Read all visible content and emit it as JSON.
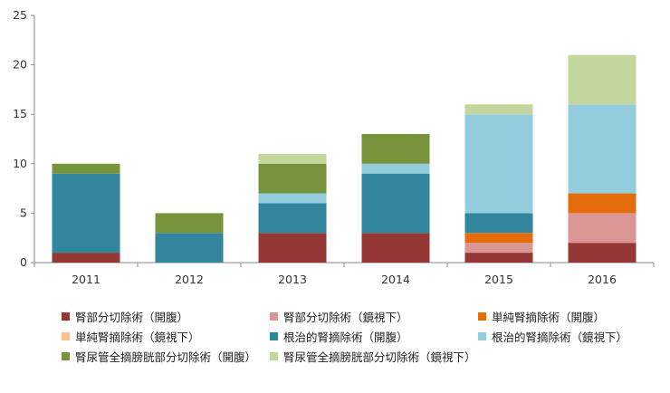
{
  "chart_data": {
    "type": "bar",
    "stacked": true,
    "categories": [
      "2011",
      "2012",
      "2013",
      "2014",
      "2015",
      "2016"
    ],
    "ylim": [
      0,
      25
    ],
    "yticks": [
      "0",
      "5",
      "10",
      "15",
      "20",
      "25"
    ],
    "grid": false,
    "legend_position": "bottom",
    "series": [
      {
        "name": "腎部分切除術（開腹）",
        "color": "#953735",
        "values": [
          1,
          0,
          3,
          3,
          1,
          2
        ]
      },
      {
        "name": "腎部分切除術（鏡視下）",
        "color": "#d99694",
        "values": [
          0,
          0,
          0,
          0,
          1,
          3
        ]
      },
      {
        "name": "単純腎摘除術（開腹）",
        "color": "#e46c0a",
        "values": [
          0,
          0,
          0,
          0,
          1,
          2
        ]
      },
      {
        "name": "単純腎摘除術（鏡視下）",
        "color": "#fac090",
        "values": [
          0,
          0,
          0,
          0,
          0,
          0
        ]
      },
      {
        "name": "根治的腎摘除術（開腹）",
        "color": "#31859c",
        "values": [
          8,
          3,
          3,
          6,
          2,
          0
        ]
      },
      {
        "name": "根治的腎摘除術（鏡視下）",
        "color": "#93cddd",
        "values": [
          0,
          0,
          1,
          1,
          10,
          9
        ]
      },
      {
        "name": "腎尿管全摘膀胱部分切除術（開腹）",
        "color": "#77933c",
        "values": [
          1,
          2,
          3,
          3,
          0,
          0
        ]
      },
      {
        "name": "腎尿管全摘膀胱部分切除術（鏡視下）",
        "color": "#c3d69b",
        "values": [
          0,
          0,
          1,
          0,
          1,
          5
        ]
      }
    ]
  }
}
